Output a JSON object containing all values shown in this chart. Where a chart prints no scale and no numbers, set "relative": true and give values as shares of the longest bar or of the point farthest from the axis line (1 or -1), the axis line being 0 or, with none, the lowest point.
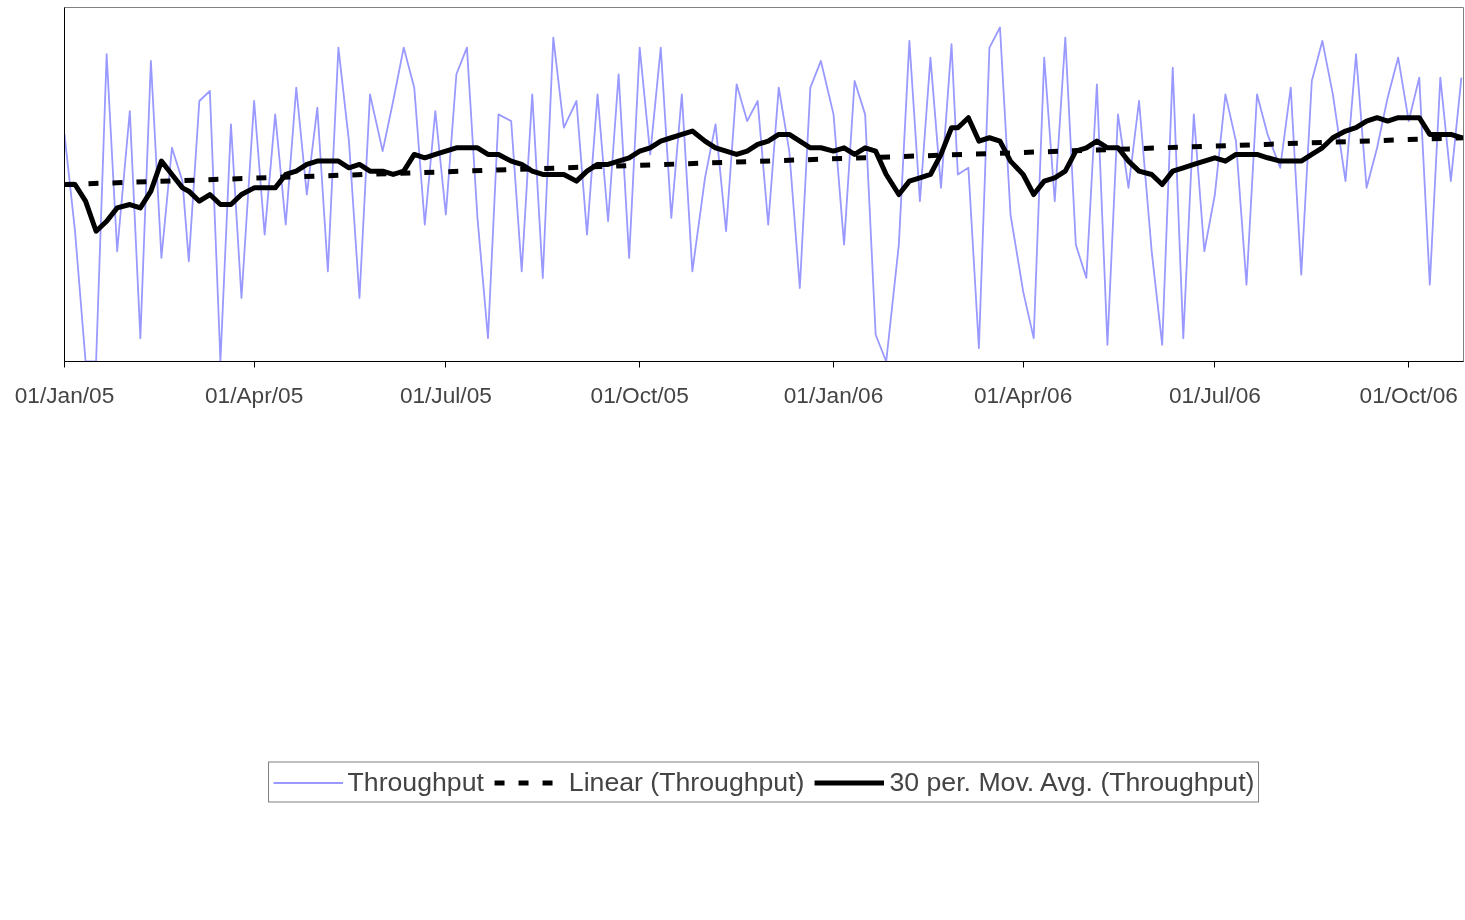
{
  "chart_data": {
    "type": "line",
    "relative": true,
    "grid": false,
    "legend": "bottom",
    "tick_labels": "x",
    "xlim": [
      "2005-01-01",
      "2006-10-27"
    ],
    "xticks": [
      {
        "value": "2005-01-01",
        "label": "01/Jan/05"
      },
      {
        "value": "2005-04-01",
        "label": "01/Apr/05"
      },
      {
        "value": "2005-07-01",
        "label": "01/Jul/05"
      },
      {
        "value": "2005-10-01",
        "label": "01/Oct/05"
      },
      {
        "value": "2006-01-01",
        "label": "01/Jan/06"
      },
      {
        "value": "2006-04-01",
        "label": "01/Apr/06"
      },
      {
        "value": "2006-07-01",
        "label": "01/Jul/06"
      },
      {
        "value": "2006-10-01",
        "label": "01/Oct/06"
      }
    ],
    "x": [
      "2005-01-01",
      "2005-01-06",
      "2005-01-11",
      "2005-01-16",
      "2005-01-21",
      "2005-01-26",
      "2005-02-01",
      "2005-02-06",
      "2005-02-11",
      "2005-02-16",
      "2005-02-21",
      "2005-02-26",
      "2005-03-01",
      "2005-03-06",
      "2005-03-11",
      "2005-03-16",
      "2005-03-21",
      "2005-03-26",
      "2005-04-01",
      "2005-04-06",
      "2005-04-11",
      "2005-04-16",
      "2005-04-21",
      "2005-04-26",
      "2005-05-01",
      "2005-05-06",
      "2005-05-11",
      "2005-05-16",
      "2005-05-21",
      "2005-05-26",
      "2005-06-01",
      "2005-06-06",
      "2005-06-11",
      "2005-06-16",
      "2005-06-21",
      "2005-06-26",
      "2005-07-01",
      "2005-07-06",
      "2005-07-11",
      "2005-07-16",
      "2005-07-21",
      "2005-07-26",
      "2005-08-01",
      "2005-08-06",
      "2005-08-11",
      "2005-08-16",
      "2005-08-21",
      "2005-08-26",
      "2005-09-01",
      "2005-09-06",
      "2005-09-11",
      "2005-09-16",
      "2005-09-21",
      "2005-09-26",
      "2005-10-01",
      "2005-10-06",
      "2005-10-11",
      "2005-10-16",
      "2005-10-21",
      "2005-10-26",
      "2005-11-01",
      "2005-11-06",
      "2005-11-11",
      "2005-11-16",
      "2005-11-21",
      "2005-11-26",
      "2005-12-01",
      "2005-12-06",
      "2005-12-11",
      "2005-12-16",
      "2005-12-21",
      "2005-12-26",
      "2006-01-01",
      "2006-01-06",
      "2006-01-11",
      "2006-01-16",
      "2006-01-21",
      "2006-01-26",
      "2006-02-01",
      "2006-02-06",
      "2006-02-11",
      "2006-02-16",
      "2006-02-21",
      "2006-02-26",
      "2006-03-01",
      "2006-03-06",
      "2006-03-11",
      "2006-03-16",
      "2006-03-21",
      "2006-03-26",
      "2006-04-01",
      "2006-04-06",
      "2006-04-11",
      "2006-04-16",
      "2006-04-21",
      "2006-04-26",
      "2006-05-01",
      "2006-05-06",
      "2006-05-11",
      "2006-05-16",
      "2006-05-21",
      "2006-05-26",
      "2006-06-01",
      "2006-06-06",
      "2006-06-11",
      "2006-06-16",
      "2006-06-21",
      "2006-06-26",
      "2006-07-01",
      "2006-07-06",
      "2006-07-11",
      "2006-07-16",
      "2006-07-21",
      "2006-07-26",
      "2006-08-01",
      "2006-08-06",
      "2006-08-11",
      "2006-08-16",
      "2006-08-21",
      "2006-08-26",
      "2006-09-01",
      "2006-09-06",
      "2006-09-11",
      "2006-09-16",
      "2006-09-21",
      "2006-09-26",
      "2006-10-01",
      "2006-10-06",
      "2006-10-11",
      "2006-10-16",
      "2006-10-21",
      "2006-10-26"
    ],
    "series": [
      {
        "name": "Throughput",
        "color": "#9999ff",
        "line_style": "solid",
        "values": [
          0.68,
          0.39,
          0,
          0,
          0.92,
          0.33,
          0.75,
          0.07,
          0.9,
          0.31,
          0.64,
          0.54,
          0.3,
          0.78,
          0.81,
          0,
          0.71,
          0.19,
          0.78,
          0.38,
          0.74,
          0.41,
          0.82,
          0.5,
          0.76,
          0.27,
          0.94,
          0.66,
          0.19,
          0.8,
          0.63,
          0.78,
          0.94,
          0.82,
          0.41,
          0.75,
          0.44,
          0.86,
          0.94,
          0.43,
          0.07,
          0.74,
          0.72,
          0.27,
          0.8,
          0.25,
          0.97,
          0.7,
          0.78,
          0.38,
          0.8,
          0.42,
          0.86,
          0.31,
          0.94,
          0.62,
          0.94,
          0.43,
          0.8,
          0.27,
          0.55,
          0.71,
          0.39,
          0.83,
          0.72,
          0.78,
          0.41,
          0.82,
          0.63,
          0.22,
          0.82,
          0.9,
          0.74,
          0.35,
          0.84,
          0.74,
          0.08,
          0,
          0.35,
          0.96,
          0.48,
          0.91,
          0.52,
          0.95,
          0.56,
          0.58,
          0.04,
          0.94,
          1.0,
          0.44,
          0.21,
          0.07,
          0.91,
          0.48,
          0.97,
          0.35,
          0.25,
          0.83,
          0.05,
          0.74,
          0.52,
          0.78,
          0.33,
          0.05,
          0.88,
          0.07,
          0.74,
          0.33,
          0.5,
          0.8,
          0.66,
          0.23,
          0.8,
          0.68,
          0.58,
          0.82,
          0.26,
          0.84,
          0.96,
          0.8,
          0.54,
          0.92,
          0.52,
          0.64,
          0.79,
          0.91,
          0.72,
          0.85,
          0.23,
          0.85,
          0.54,
          0.85
        ]
      },
      {
        "name": "Linear (Throughput)",
        "color": "#000000",
        "line_style": "dashed",
        "x": [
          "2005-01-01",
          "2006-10-27"
        ],
        "values": [
          0.53,
          0.67
        ]
      },
      {
        "name": "30 per. Mov. Avg. (Throughput)",
        "color": "#000000",
        "line_style": "solid",
        "values": [
          0.53,
          0.53,
          0.48,
          0.39,
          0.42,
          0.46,
          0.47,
          0.46,
          0.51,
          0.6,
          0.56,
          0.52,
          0.51,
          0.48,
          0.5,
          0.47,
          0.47,
          0.5,
          0.52,
          0.52,
          0.52,
          0.56,
          0.57,
          0.59,
          0.6,
          0.6,
          0.6,
          0.58,
          0.59,
          0.57,
          0.57,
          0.56,
          0.57,
          0.62,
          0.61,
          0.62,
          0.63,
          0.64,
          0.64,
          0.64,
          0.62,
          0.62,
          0.6,
          0.59,
          0.57,
          0.56,
          0.56,
          0.56,
          0.54,
          0.57,
          0.59,
          0.59,
          0.6,
          0.61,
          0.63,
          0.64,
          0.66,
          0.67,
          0.68,
          0.69,
          0.66,
          0.64,
          0.63,
          0.62,
          0.63,
          0.65,
          0.66,
          0.68,
          0.68,
          0.66,
          0.64,
          0.64,
          0.63,
          0.64,
          0.62,
          0.64,
          0.63,
          0.56,
          0.5,
          0.54,
          0.55,
          0.56,
          0.62,
          0.7,
          0.7,
          0.73,
          0.66,
          0.67,
          0.66,
          0.6,
          0.56,
          0.5,
          0.54,
          0.55,
          0.57,
          0.63,
          0.64,
          0.66,
          0.64,
          0.64,
          0.6,
          0.57,
          0.56,
          0.53,
          0.57,
          0.58,
          0.59,
          0.6,
          0.61,
          0.6,
          0.62,
          0.62,
          0.62,
          0.61,
          0.6,
          0.6,
          0.6,
          0.62,
          0.64,
          0.67,
          0.69,
          0.7,
          0.72,
          0.73,
          0.72,
          0.73,
          0.73,
          0.73,
          0.68,
          0.68,
          0.68,
          0.67
        ]
      }
    ]
  }
}
